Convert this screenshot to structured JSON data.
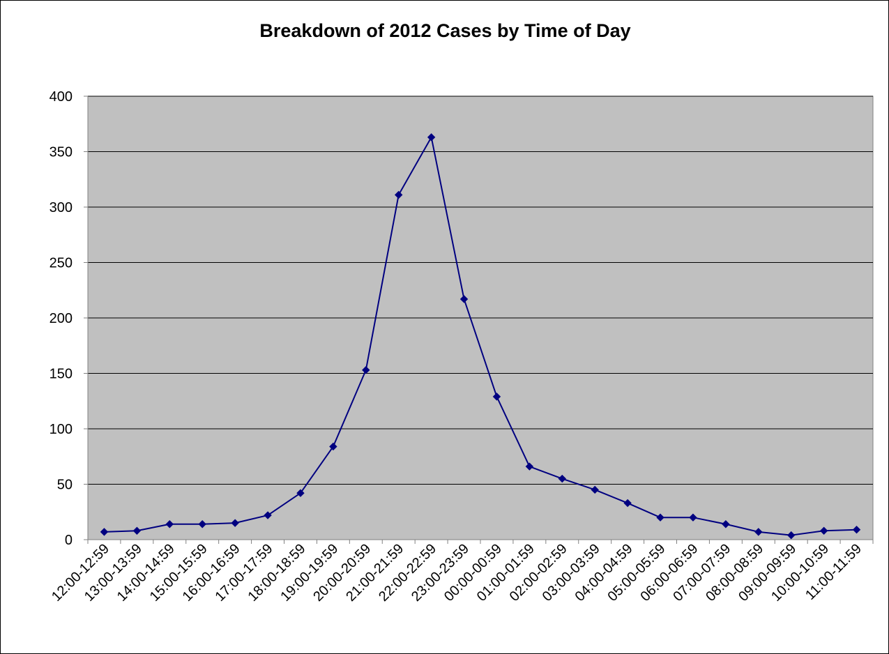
{
  "chart_data": {
    "type": "line",
    "title": "Breakdown of 2012 Cases by Time of Day",
    "xlabel": "",
    "ylabel": "",
    "ylim": [
      0,
      400
    ],
    "yticks": [
      0,
      50,
      100,
      150,
      200,
      250,
      300,
      350,
      400
    ],
    "grid": true,
    "legend": "none",
    "categories": [
      "12:00-12:59",
      "13:00-13:59",
      "14:00-14:59",
      "15:00-15:59",
      "16:00-16:59",
      "17:00-17:59",
      "18:00-18:59",
      "19:00-19:59",
      "20:00-20:59",
      "21:00-21:59",
      "22:00-22:59",
      "23:00-23:59",
      "00:00-00:59",
      "01:00-01:59",
      "02:00-02:59",
      "03:00-03:59",
      "04:00-04:59",
      "05:00-05:59",
      "06:00-06:59",
      "07:00-07:59",
      "08:00-08:59",
      "09:00-09:59",
      "10:00-10:59",
      "11:00-11:59"
    ],
    "series": [
      {
        "values": [
          7,
          8,
          14,
          14,
          15,
          22,
          42,
          84,
          153,
          311,
          363,
          217,
          129,
          66,
          55,
          45,
          33,
          20,
          20,
          14,
          7,
          4,
          8,
          9
        ]
      }
    ],
    "colors": {
      "plot_background": "#C0C0C0",
      "line": "#000080",
      "marker": "#000080",
      "gridline": "#000000",
      "axis": "#808080"
    }
  }
}
